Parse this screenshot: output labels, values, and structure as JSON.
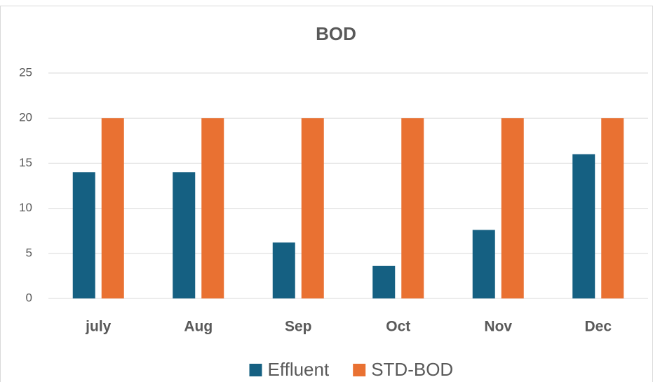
{
  "chart_data": {
    "type": "bar",
    "title": "BOD",
    "categories": [
      "july",
      "Aug",
      "Sep",
      "Oct",
      "Nov",
      "Dec"
    ],
    "series": [
      {
        "name": "Effluent",
        "color": "#156082",
        "values": [
          14,
          14,
          6.2,
          3.6,
          7.6,
          16
        ]
      },
      {
        "name": "STD-BOD",
        "color": "#E97132",
        "values": [
          20,
          20,
          20,
          20,
          20,
          20
        ]
      }
    ],
    "ylim": [
      0,
      25
    ],
    "yticks": [
      0,
      5,
      10,
      15,
      20,
      25
    ],
    "grid": true,
    "legend": "bottom"
  }
}
